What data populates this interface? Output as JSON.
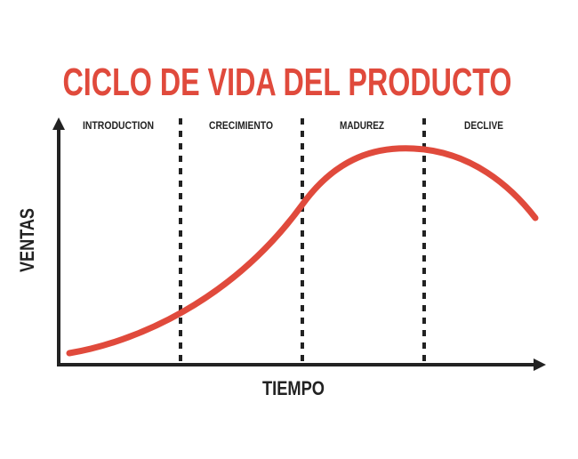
{
  "title": "CICLO DE VIDA DEL PRODUCTO",
  "axes": {
    "y_label": "VENTAS",
    "x_label": "TIEMPO"
  },
  "stages": [
    "INTRODUCTION",
    "CRECIMIENTO",
    "MADUREZ",
    "DECLIVE"
  ]
}
